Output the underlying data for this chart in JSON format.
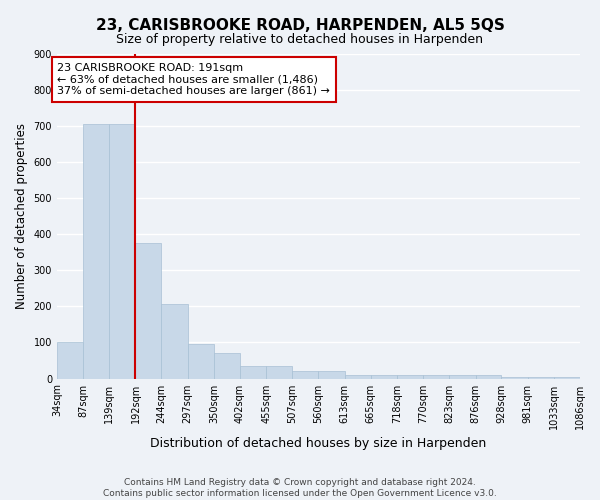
{
  "title": "23, CARISBROOKE ROAD, HARPENDEN, AL5 5QS",
  "subtitle": "Size of property relative to detached houses in Harpenden",
  "xlabel": "Distribution of detached houses by size in Harpenden",
  "ylabel": "Number of detached properties",
  "bin_edges": [
    34,
    87,
    139,
    192,
    244,
    297,
    350,
    402,
    455,
    507,
    560,
    613,
    665,
    718,
    770,
    823,
    876,
    928,
    981,
    1033,
    1086
  ],
  "bar_heights": [
    100,
    707,
    707,
    375,
    207,
    95,
    72,
    35,
    35,
    22,
    22,
    10,
    10,
    10,
    10,
    10,
    10,
    3,
    3,
    3
  ],
  "tick_labels": [
    "34sqm",
    "87sqm",
    "139sqm",
    "192sqm",
    "244sqm",
    "297sqm",
    "350sqm",
    "402sqm",
    "455sqm",
    "507sqm",
    "560sqm",
    "613sqm",
    "665sqm",
    "718sqm",
    "770sqm",
    "823sqm",
    "876sqm",
    "928sqm",
    "981sqm",
    "1033sqm",
    "1086sqm"
  ],
  "bar_color": "#c8d8e8",
  "bar_edge_color": "#a8c0d4",
  "vline_x": 192,
  "vline_color": "#cc0000",
  "annotation_line1": "23 CARISBROOKE ROAD: 191sqm",
  "annotation_line2": "← 63% of detached houses are smaller (1,486)",
  "annotation_line3": "37% of semi-detached houses are larger (861) →",
  "annotation_box_color": "#ffffff",
  "annotation_box_edge": "#cc0000",
  "ylim": [
    0,
    900
  ],
  "yticks": [
    0,
    100,
    200,
    300,
    400,
    500,
    600,
    700,
    800,
    900
  ],
  "background_color": "#eef2f7",
  "grid_color": "#ffffff",
  "footer_line1": "Contains HM Land Registry data © Crown copyright and database right 2024.",
  "footer_line2": "Contains public sector information licensed under the Open Government Licence v3.0."
}
